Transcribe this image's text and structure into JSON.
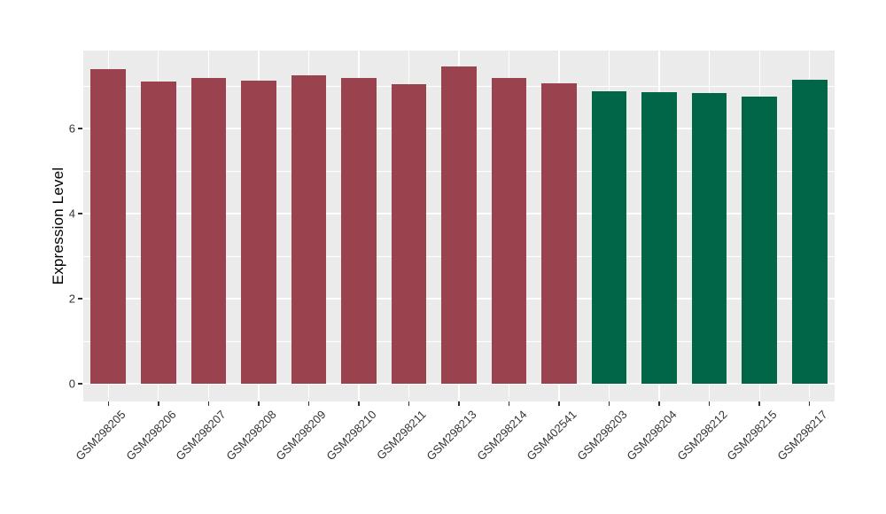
{
  "chart_data": {
    "type": "bar",
    "title": "",
    "ylabel": "Expression Level",
    "xlabel": "",
    "categories": [
      "GSM298205",
      "GSM298206",
      "GSM298207",
      "GSM298208",
      "GSM298209",
      "GSM298210",
      "GSM298211",
      "GSM298213",
      "GSM298214",
      "GSM402541",
      "GSM298203",
      "GSM298204",
      "GSM298212",
      "GSM298215",
      "GSM298217"
    ],
    "values": [
      7.4,
      7.11,
      7.19,
      7.13,
      7.26,
      7.19,
      7.04,
      7.46,
      7.18,
      7.06,
      6.88,
      6.86,
      6.83,
      6.74,
      7.15
    ],
    "groups": [
      "maroon",
      "maroon",
      "maroon",
      "maroon",
      "maroon",
      "maroon",
      "maroon",
      "maroon",
      "maroon",
      "maroon",
      "green",
      "green",
      "green",
      "green",
      "green"
    ],
    "group_colors": {
      "maroon": "#9A434F",
      "green": "#006647"
    },
    "yticks": [
      0,
      2,
      4,
      6
    ],
    "minor_yticks": [
      1,
      3,
      5,
      7
    ],
    "ylim": [
      -0.42,
      7.83
    ],
    "bar_width_frac": 0.7,
    "grid": true,
    "legend_position": "none",
    "panel_bg": "#EBEBEB",
    "grid_color": "#FFFFFF",
    "axis_text_color": "#333333",
    "axis_title_color": "#000000"
  }
}
